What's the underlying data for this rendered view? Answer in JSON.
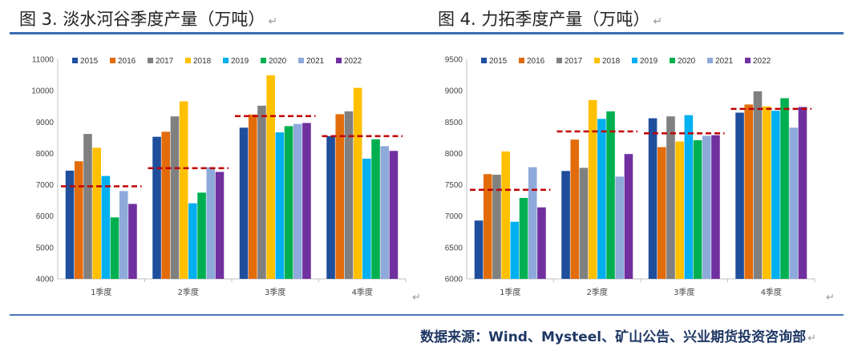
{
  "page": {
    "left_title": "图 3. 淡水河谷季度产量（万吨）",
    "right_title": "图 4. 力拓季度产量（万吨）",
    "return_mark": "↵",
    "source": "数据来源：Wind、Mysteel、矿山公告、兴业期货投资咨询部"
  },
  "colors": {
    "rule": "#3b6fb3",
    "source_text": "#1f3864",
    "avg_line": "#c00000",
    "series": [
      "#1f4e9c",
      "#e36c0a",
      "#808080",
      "#ffc000",
      "#00b0f0",
      "#00b050",
      "#8eaadb",
      "#7030a0"
    ]
  },
  "chart_data": [
    {
      "type": "bar",
      "title": "图 3. 淡水河谷季度产量（万吨）",
      "categories": [
        "1季度",
        "2季度",
        "3季度",
        "4季度"
      ],
      "ylim": [
        4000,
        11000
      ],
      "yticks": [
        4000,
        5000,
        6000,
        7000,
        8000,
        9000,
        10000,
        11000
      ],
      "legend_position": "top",
      "grid": false,
      "series": [
        {
          "name": "2015",
          "values": [
            7450,
            8530,
            8820,
            8550
          ]
        },
        {
          "name": "2016",
          "values": [
            7750,
            8690,
            9240,
            9250
          ]
        },
        {
          "name": "2017",
          "values": [
            8620,
            9180,
            9520,
            9340
          ]
        },
        {
          "name": "2018",
          "values": [
            8180,
            9660,
            10490,
            10090
          ]
        },
        {
          "name": "2019",
          "values": [
            7280,
            6410,
            8670,
            7830
          ]
        },
        {
          "name": "2020",
          "values": [
            5960,
            6750,
            8870,
            8450
          ]
        },
        {
          "name": "2021",
          "values": [
            6800,
            7560,
            8940,
            8230
          ]
        },
        {
          "name": "2022",
          "values": [
            6390,
            7410,
            8970,
            8080
          ]
        }
      ],
      "averages": [
        6950,
        7530,
        9190,
        8550
      ]
    },
    {
      "type": "bar",
      "title": "图 4. 力拓季度产量（万吨）",
      "categories": [
        "1季度",
        "2季度",
        "3季度",
        "4季度"
      ],
      "ylim": [
        6000,
        9500
      ],
      "yticks": [
        6000,
        6500,
        7000,
        7500,
        8000,
        8500,
        9000,
        9500
      ],
      "legend_position": "top",
      "grid": false,
      "series": [
        {
          "name": "2015",
          "values": [
            6930,
            7720,
            8560,
            8650
          ]
        },
        {
          "name": "2016",
          "values": [
            7670,
            8220,
            8100,
            8780
          ]
        },
        {
          "name": "2017",
          "values": [
            7660,
            7770,
            8590,
            8990
          ]
        },
        {
          "name": "2018",
          "values": [
            8030,
            8850,
            8190,
            8750
          ]
        },
        {
          "name": "2019",
          "values": [
            6910,
            8550,
            8610,
            8680
          ]
        },
        {
          "name": "2020",
          "values": [
            7290,
            8670,
            8210,
            8880
          ]
        },
        {
          "name": "2021",
          "values": [
            7780,
            7630,
            8280,
            8410
          ]
        },
        {
          "name": "2022",
          "values": [
            7140,
            7990,
            8290,
            8740
          ]
        }
      ],
      "averages": [
        7420,
        8350,
        8320,
        8710
      ]
    }
  ]
}
